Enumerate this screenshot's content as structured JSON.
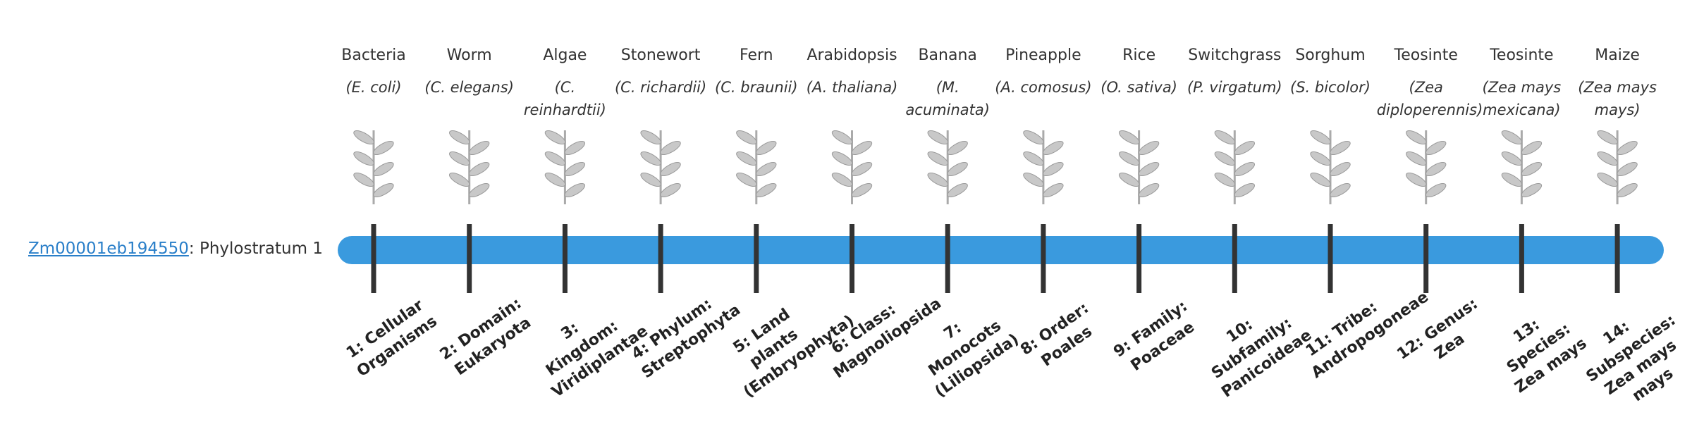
{
  "gene": {
    "link": "Zm00001eb194550",
    "suffix": ": Phylostratum 1"
  },
  "organisms": [
    {
      "name": "Bacteria",
      "species": "(E. coli)"
    },
    {
      "name": "Worm",
      "species": "(C. elegans)"
    },
    {
      "name": "Algae",
      "species": "(C. reinhardtii)"
    },
    {
      "name": "Stonewort",
      "species": "(C. richardii)"
    },
    {
      "name": "Fern",
      "species": "(C. braunii)"
    },
    {
      "name": "Arabidopsis",
      "species": "(A. thaliana)"
    },
    {
      "name": "Banana",
      "species": "(M. acuminata)"
    },
    {
      "name": "Pineapple",
      "species": "(A. comosus)"
    },
    {
      "name": "Rice",
      "species": "(O. sativa)"
    },
    {
      "name": "Switchgrass",
      "species": "(P. virgatum)"
    },
    {
      "name": "Sorghum",
      "species": "(S. bicolor)"
    },
    {
      "name": "Teosinte",
      "species": "(Zea diploperennis)"
    },
    {
      "name": "Teosinte",
      "species": "(Zea mays mexicana)"
    },
    {
      "name": "Maize",
      "species": "(Zea mays mays)"
    }
  ],
  "strata": [
    "1: Cellular Organisms",
    "2: Domain: Eukaryota",
    "3: Kingdom: Viridiplantae",
    "4: Phylum: Streptophyta",
    "5: Land plants (Embryophyta)",
    "6: Class: Magnoliopsida",
    "7: Monocots (Liliopsida)",
    "8: Order: Poales",
    "9: Family: Poaceae",
    "10: Subfamily: Panicoideae",
    "11: Tribe: Andropogoneae",
    "12: Genus: Zea",
    "13: Species: Zea mays",
    "14: Subspecies: Zea mays mays"
  ]
}
